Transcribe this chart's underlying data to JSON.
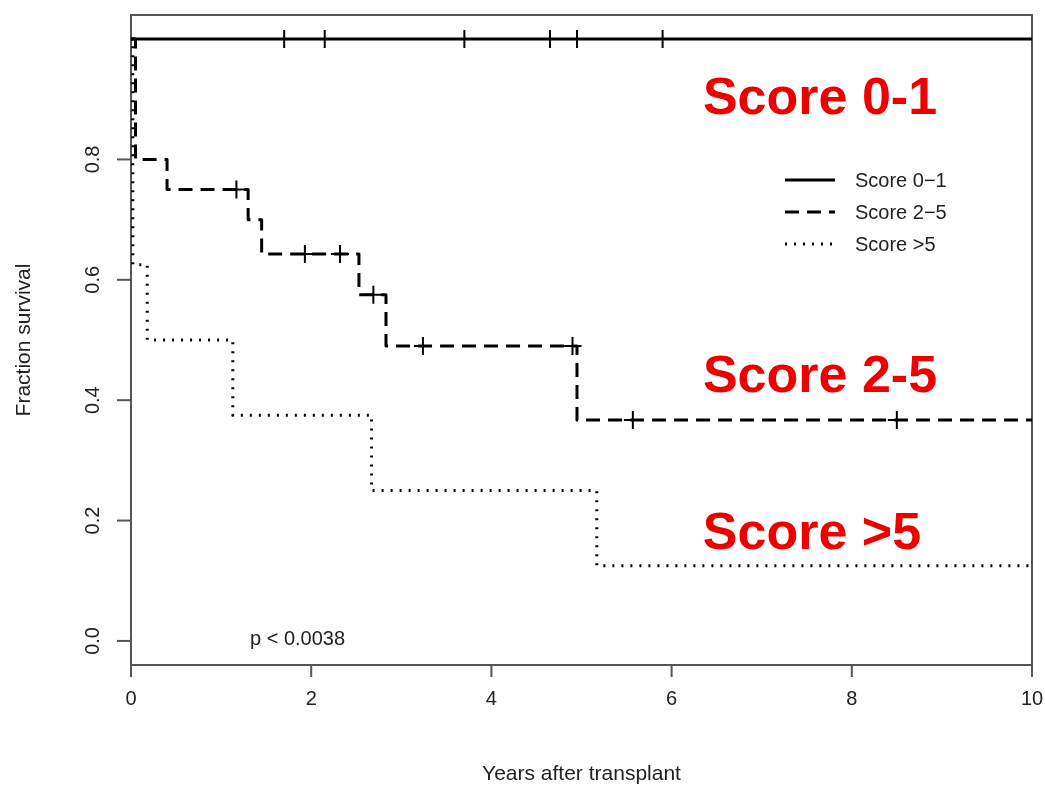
{
  "chart_data": {
    "type": "step",
    "xlabel": "Years after transplant",
    "ylabel": "Fraction survival",
    "xlim": [
      0,
      10
    ],
    "ylim": [
      -0.04,
      1.04
    ],
    "xticks": [
      0,
      2,
      4,
      6,
      8,
      10
    ],
    "yticks": [
      {
        "value": 0,
        "label": "0.0"
      },
      0.2,
      0.4,
      0.6,
      0.8
    ],
    "legend": "right",
    "grid": false,
    "series": [
      {
        "name": "Score 0−1",
        "color": "#000000",
        "line_style": "solid",
        "x": [
          0,
          10
        ],
        "values": [
          1,
          1
        ]
      },
      {
        "name": "Score 2−5",
        "color": "#000000",
        "line_style": "dashed",
        "x": [
          0,
          0.05,
          0.4,
          1.3,
          1.45,
          2.53,
          2.83,
          4.95,
          10
        ],
        "values": [
          1,
          0.8,
          0.75,
          0.7,
          0.643,
          0.575,
          0.49,
          0.367,
          0.367
        ]
      },
      {
        "name": "Score >5",
        "color": "#000000",
        "line_style": "dotted",
        "x": [
          0,
          0.02,
          0.18,
          1.13,
          2.67,
          5.17,
          10
        ],
        "values": [
          1,
          0.625,
          0.5,
          0.375,
          0.25,
          0.125,
          0.125
        ]
      },
      {
        "type": "scatter",
        "marker": "cross",
        "color": "#000000",
        "x": [
          1.7,
          2.15,
          3.7,
          4.65,
          4.95,
          5.9
        ],
        "values": [
          1,
          1,
          1,
          1,
          1,
          1
        ]
      },
      {
        "type": "scatter",
        "marker": "cross",
        "color": "#000000",
        "x": [
          1.17,
          1.93,
          2.32,
          2.69,
          3.24,
          4.9,
          5.57,
          8.5
        ],
        "values": [
          0.75,
          0.643,
          0.643,
          0.575,
          0.49,
          0.49,
          0.367,
          0.367
        ]
      }
    ],
    "annotations": [
      "Score 0-1",
      "Score 2-5",
      "Score >5",
      "p < 0.0038"
    ]
  }
}
